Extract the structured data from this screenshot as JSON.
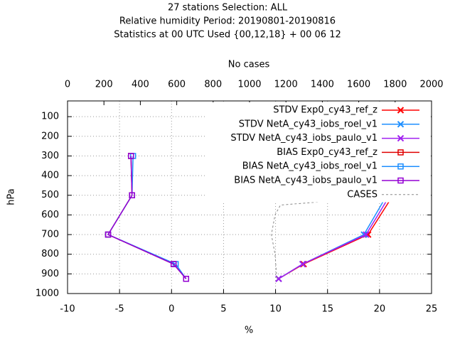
{
  "chart_data": {
    "type": "profile",
    "title_lines": [
      "27 stations Selection: ALL",
      "Relative humidity  Period: 20190801-20190816",
      "Statistics at 00 UTC  Used {00,12,18} + 00 06 12"
    ],
    "xlabel": "%",
    "x2label": "No cases",
    "ylabel": "hPa",
    "xlim": [
      -10,
      25
    ],
    "xticks": [
      -10,
      -5,
      0,
      5,
      10,
      15,
      20,
      25
    ],
    "x2lim": [
      0,
      2000
    ],
    "x2ticks": [
      0,
      200,
      400,
      600,
      800,
      1000,
      1200,
      1400,
      1600,
      1800,
      2000
    ],
    "ylim": [
      1000,
      20
    ],
    "yticks": [
      100,
      200,
      300,
      400,
      500,
      600,
      700,
      800,
      900,
      1000
    ],
    "grid": true,
    "legend": "top-right",
    "series": [
      {
        "name": "STDV Exp0_cy43_ref_z",
        "color": "#ff0000",
        "marker": "cross",
        "levels": [
          300,
          500,
          700,
          850,
          925
        ],
        "values": [
          15.6,
          21.3,
          18.9,
          12.7,
          10.3
        ]
      },
      {
        "name": "STDV NetA_cy43_iobs_roel_v1",
        "color": "#1e8fff",
        "marker": "cross",
        "levels": [
          300,
          500,
          700,
          850,
          925
        ],
        "values": [
          15.5,
          20.7,
          18.5,
          12.6,
          10.3
        ]
      },
      {
        "name": "STDV NetA_cy43_iobs_paulo_v1",
        "color": "#a020f0",
        "marker": "cross",
        "levels": [
          300,
          500,
          700,
          850,
          925
        ],
        "values": [
          15.5,
          21.0,
          18.7,
          12.6,
          10.3
        ]
      },
      {
        "name": "BIAS Exp0_cy43_ref_z",
        "color": "#e00000",
        "marker": "square",
        "levels": [
          300,
          500,
          700,
          850,
          925
        ],
        "values": [
          -3.9,
          -3.8,
          -6.1,
          0.2,
          1.4
        ]
      },
      {
        "name": "BIAS NetA_cy43_iobs_roel_v1",
        "color": "#1e8fff",
        "marker": "square",
        "levels": [
          300,
          500,
          700,
          850,
          925
        ],
        "values": [
          -3.7,
          -3.8,
          -6.1,
          0.4,
          1.4
        ]
      },
      {
        "name": "BIAS NetA_cy43_iobs_paulo_v1",
        "color": "#9400d3",
        "marker": "square",
        "levels": [
          300,
          500,
          700,
          850,
          925
        ],
        "values": [
          -3.9,
          -3.8,
          -6.1,
          0.2,
          1.4
        ]
      },
      {
        "name": "CASES",
        "color": "#888888",
        "marker": "none",
        "dashed": true,
        "axis": "x2",
        "levels": [
          490,
          550,
          600,
          700,
          800,
          925
        ],
        "values": [
          1960,
          1170,
          1140,
          1120,
          1140,
          1150
        ]
      }
    ]
  }
}
